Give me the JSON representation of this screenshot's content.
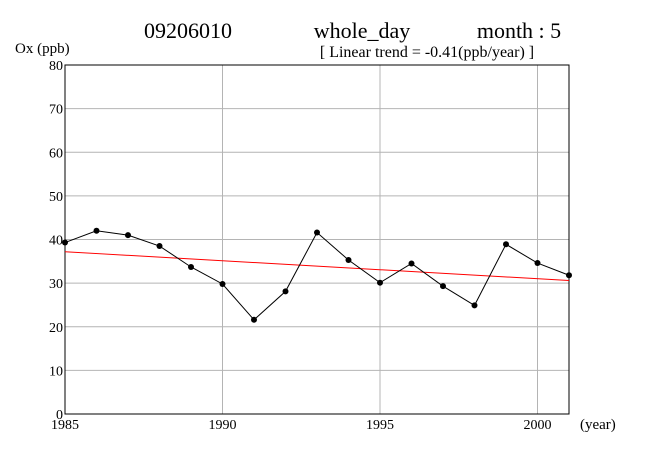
{
  "header": {
    "station": "09206010",
    "period": "whole_day",
    "month_label": "month : 5",
    "trend_text": "[ Linear trend = -0.41(ppb/year) ]"
  },
  "chart_data": {
    "type": "line",
    "ylabel": "Ox (ppb)",
    "xlabel": "(year)",
    "xlim": [
      1985,
      2001
    ],
    "ylim": [
      0,
      80
    ],
    "x_ticks": [
      1985,
      1990,
      1995,
      2000
    ],
    "y_ticks": [
      0,
      10,
      20,
      30,
      40,
      50,
      60,
      70,
      80
    ],
    "grid": true,
    "series": [
      {
        "x": [
          1985,
          1986,
          1987,
          1988,
          1989,
          1990,
          1991,
          1992,
          1993,
          1994,
          1995,
          1996,
          1997,
          1998,
          1999,
          2000,
          2001
        ],
        "values": [
          39.3,
          42.0,
          41.0,
          38.5,
          33.7,
          29.8,
          21.6,
          28.1,
          41.6,
          35.3,
          30.1,
          34.5,
          29.3,
          24.9,
          38.9,
          34.6,
          31.8
        ],
        "color": "#000000"
      }
    ],
    "trend": {
      "slope_ppb_per_year": -0.41,
      "start": {
        "x": 1985,
        "y": 37.2
      },
      "end": {
        "x": 2001,
        "y": 30.6
      },
      "color": "#ff0000"
    }
  }
}
